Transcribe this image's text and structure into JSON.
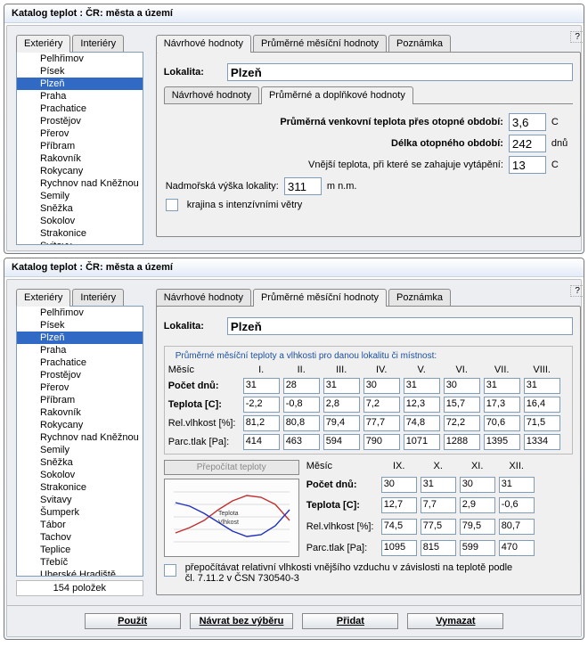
{
  "window_title": "Katalog teplot : ČR: města a území",
  "side_tabs": [
    "Exteriéry",
    "Interiéry"
  ],
  "main_tabs": [
    "Návrhové hodnoty",
    "Průměrné měsíční hodnoty",
    "Poznámka"
  ],
  "sub_tabs": [
    "Návrhové hodnoty",
    "Průměrné a doplňkové hodnoty"
  ],
  "list_top": [
    "Pelhřimov",
    "Písek",
    "Plzeň",
    "Praha",
    "Prachatice",
    "Prostějov",
    "Přerov",
    "Příbram",
    "Rakovník",
    "Rokycany",
    "Rychnov nad Kněžnou",
    "Semily",
    "Sněžka",
    "Sokolov",
    "Strakonice",
    "Svitavy"
  ],
  "list_bottom": [
    "Pelhřimov",
    "Písek",
    "Plzeň",
    "Praha",
    "Prachatice",
    "Prostějov",
    "Přerov",
    "Příbram",
    "Rakovník",
    "Rokycany",
    "Rychnov nad Kněžnou",
    "Semily",
    "Sněžka",
    "Sokolov",
    "Strakonice",
    "Svitavy",
    "Šumperk",
    "Tábor",
    "Tachov",
    "Teplice",
    "Třebíč",
    "Uherské Hradiště"
  ],
  "selected": "Plzeň",
  "lokalita_label": "Lokalita:",
  "lokalita_value": "Plzeň",
  "top_panel": {
    "l1": "Průměrná venkovní teplota přes otopné období:",
    "v1": "3,6",
    "u1": "C",
    "l2": "Délka otopného období:",
    "v2": "242",
    "u2": "dnů",
    "l3": "Vnější teplota, při které se zahajuje vytápění:",
    "v3": "13",
    "u3": "C",
    "l4": "Nadmořská výška lokality:",
    "v4": "311",
    "u4": "m n.m.",
    "ck": "krajina s intenzívními větry"
  },
  "monthly": {
    "group_title": "Průměrné měsíční teploty a vlhkosti pro danou lokalitu či místnost:",
    "rows_label": [
      "Měsíc",
      "Počet dnů:",
      "Teplota [C]:",
      "Rel.vlhkost [%]:",
      "Parc.tlak [Pa]:"
    ],
    "months1": [
      "I.",
      "II.",
      "III.",
      "IV.",
      "V.",
      "VI.",
      "VII.",
      "VIII."
    ],
    "days1": [
      "31",
      "28",
      "31",
      "30",
      "31",
      "30",
      "31",
      "31"
    ],
    "temp1": [
      "-2,2",
      "-0,8",
      "2,8",
      "7,2",
      "12,3",
      "15,7",
      "17,3",
      "16,4"
    ],
    "rh1": [
      "81,2",
      "80,8",
      "79,4",
      "77,7",
      "74,8",
      "72,2",
      "70,6",
      "71,5"
    ],
    "pp1": [
      "414",
      "463",
      "594",
      "790",
      "1071",
      "1288",
      "1395",
      "1334"
    ],
    "months2": [
      "IX.",
      "X.",
      "XI.",
      "XII."
    ],
    "days2": [
      "30",
      "31",
      "30",
      "31"
    ],
    "temp2": [
      "12,7",
      "7,7",
      "2,9",
      "-0,6"
    ],
    "rh2": [
      "74,5",
      "77,5",
      "79,5",
      "80,7"
    ],
    "pp2": [
      "1095",
      "815",
      "599",
      "470"
    ],
    "recalc_btn": "Přepočítat teploty",
    "ck2": "přepočítávat relativní vlhkosti vnějšího vzduchu v závislosti na teplotě podle čl. 7.11.2 v ČSN 730540-3",
    "chart_colors": {
      "temp": "#c03030",
      "hum": "#2030c0",
      "grid": "#dddddd"
    }
  },
  "status": "154 položek",
  "buttons": {
    "use": "Použít",
    "back": "Návrat bez výběru",
    "add": "Přidat",
    "del": "Vymazat"
  },
  "help": "?"
}
